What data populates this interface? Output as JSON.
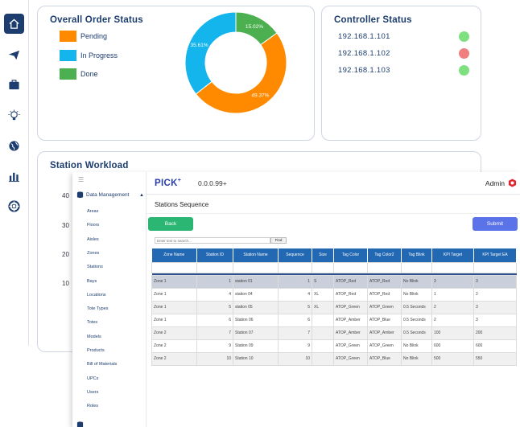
{
  "order_status": {
    "title": "Overall Order Status",
    "legend": [
      {
        "label": "Pending",
        "color": "#ff8a00"
      },
      {
        "label": "In Progress",
        "color": "#14b4ec"
      },
      {
        "label": "Done",
        "color": "#4caf50"
      }
    ]
  },
  "chart_data": [
    {
      "type": "pie",
      "categories": [
        "Pending",
        "In Progress",
        "Done"
      ],
      "values": [
        49.37,
        35.61,
        15.02
      ],
      "value_labels": [
        "49.37%",
        "35.61%",
        "15.02%"
      ],
      "colors": [
        "#ff8a00",
        "#14b4ec",
        "#4caf50"
      ],
      "donut": true
    },
    {
      "type": "bar",
      "title": "Station Workload",
      "yticks": [
        "40",
        "30",
        "20",
        "10"
      ],
      "ylim": [
        0,
        40
      ]
    }
  ],
  "controller_status": {
    "title": "Controller Status",
    "controllers": [
      {
        "ip": "192.168.1.101",
        "color": "#7ee07e"
      },
      {
        "ip": "192.168.1.102",
        "color": "#f08080"
      },
      {
        "ip": "192.168.1.103",
        "color": "#7ee07e"
      }
    ]
  },
  "workload": {
    "title": "Station Workload"
  },
  "rail_icons": [
    "home-icon",
    "send-icon",
    "briefcase-icon",
    "lightbulb-icon",
    "globe-icon",
    "bar-chart-icon",
    "lifebuoy-icon"
  ],
  "app": {
    "brand": "PICK",
    "brand_sup": "+",
    "version": "0.0.0.99+",
    "user": "Admin"
  },
  "sidebar": {
    "section": "Data Management",
    "items": [
      "Areas",
      "Floors",
      "Aisles",
      "Zones",
      "Stations",
      "Bays",
      "Locations",
      "Tote Types",
      "Totes",
      "Models",
      "Products",
      "Bill of Materials",
      "UPCs",
      "Users",
      "Roles"
    ]
  },
  "page": {
    "title": "Stations Sequence",
    "back_label": "Back",
    "submit_label": "Submit",
    "search_placeholder": "Enter text to search...",
    "find_label": "Find"
  },
  "table": {
    "columns": [
      "Zone Name",
      "Station ID",
      "Station Name",
      "Sequence",
      "Size",
      "Tag Color",
      "Tag Color2",
      "Tag Blink",
      "KPI Target",
      "KPI Target EA"
    ],
    "rows": [
      [
        "Zone 1",
        "1",
        "station 01",
        "1",
        "S",
        "ATOP_Red",
        "ATOP_Red",
        "No Blink",
        "3",
        "3"
      ],
      [
        "Zone 1",
        "4",
        "station 04",
        "4",
        "XL",
        "ATOP_Red",
        "ATOP_Red",
        "No Blink",
        "1",
        "2"
      ],
      [
        "Zone 1",
        "5",
        "station 05",
        "5",
        "XL",
        "ATOP_Green",
        "ATOP_Green",
        "0.5 Seconds",
        "2",
        "3"
      ],
      [
        "Zone 1",
        "6",
        "Station 06",
        "6",
        "",
        "ATOP_Amber",
        "ATOP_Blue",
        "0.5 Seconds",
        "2",
        "3"
      ],
      [
        "Zone 2",
        "7",
        "Station 07",
        "7",
        "",
        "ATOP_Amber",
        "ATOP_Amber",
        "0.5 Seconds",
        "100",
        "200"
      ],
      [
        "Zone 2",
        "9",
        "Station 09",
        "9",
        "",
        "ATOP_Green",
        "ATOP_Green",
        "No Blink",
        "600",
        "600"
      ],
      [
        "Zone 2",
        "10",
        "Station 10",
        "10",
        "",
        "ATOP_Green",
        "ATOP_Blue",
        "No Blink",
        "500",
        "550"
      ]
    ]
  }
}
